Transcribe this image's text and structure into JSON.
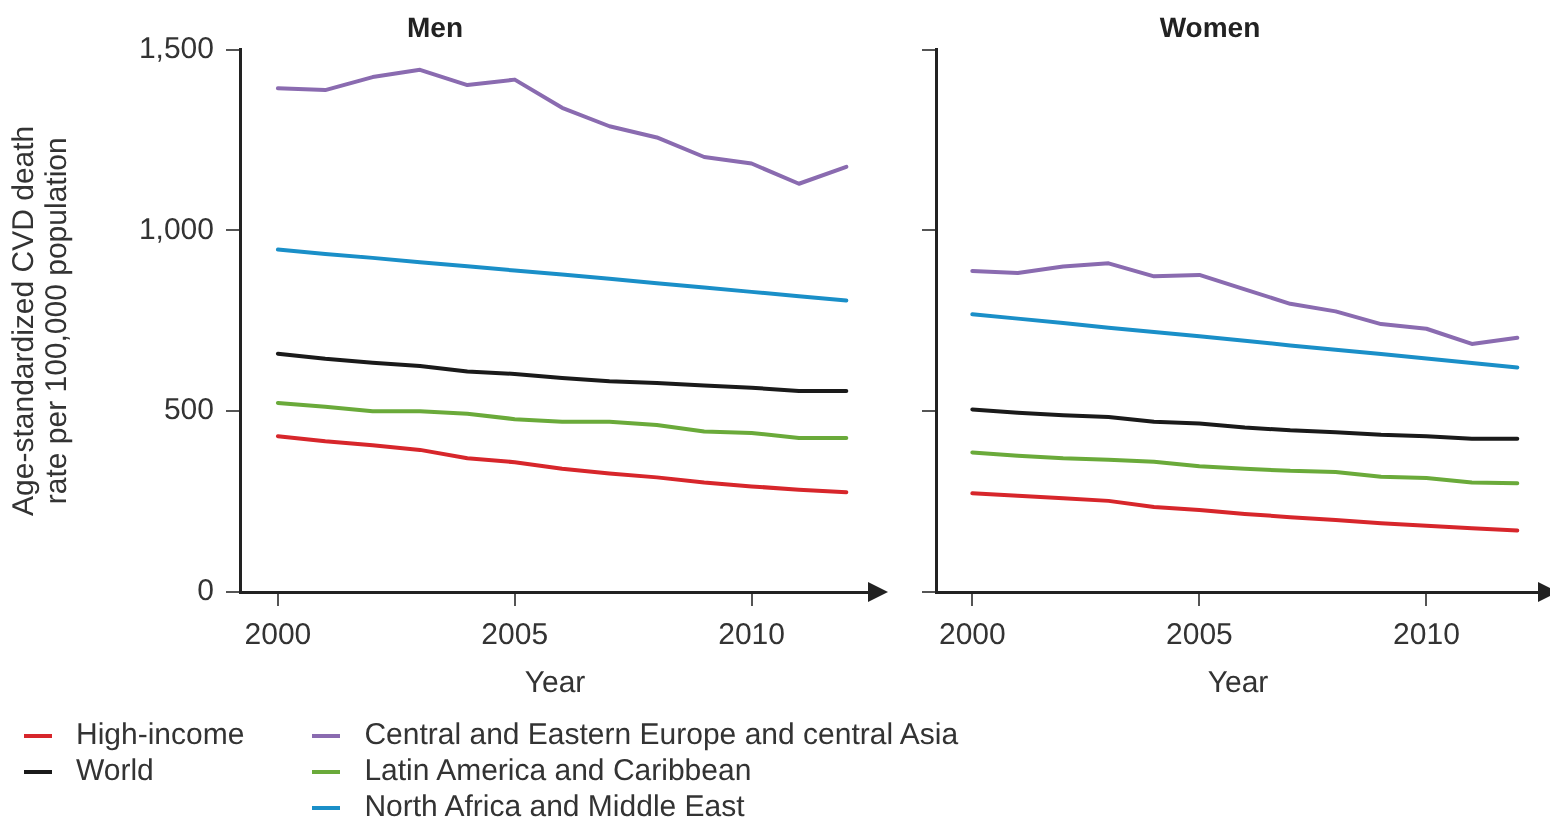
{
  "chart_data": [
    {
      "type": "line",
      "title": "Men",
      "xlabel": "Year",
      "ylabel": "Age-standardized CVD death rate per 100,000 population",
      "x": [
        2000,
        2001,
        2002,
        2003,
        2004,
        2005,
        2006,
        2007,
        2008,
        2009,
        2010,
        2011,
        2012
      ],
      "xlim": [
        1999.2,
        2012.5
      ],
      "xticks": [
        2000,
        2005,
        2010
      ],
      "ylim": [
        0,
        1500
      ],
      "yticks": [
        0,
        500,
        {
          "value": 1000,
          "label": "1,000"
        },
        {
          "value": 1500,
          "label": "1,500"
        }
      ],
      "grid": false,
      "legend": "bottom",
      "marker": "none",
      "line_style": "solid",
      "series": [
        {
          "name": "High-income",
          "color": "#d7262b",
          "values": [
            431,
            417,
            406,
            393,
            370,
            359,
            341,
            328,
            317,
            303,
            292,
            283,
            276
          ]
        },
        {
          "name": "World",
          "color": "#1a1a1a",
          "values": [
            659,
            645,
            634,
            625,
            610,
            603,
            592,
            583,
            578,
            571,
            565,
            556,
            556
          ]
        },
        {
          "name": "Central and Eastern Europe and central Asia",
          "color": "#8a6bb0",
          "values": [
            1393,
            1388,
            1424,
            1444,
            1402,
            1417,
            1339,
            1288,
            1257,
            1203,
            1185,
            1129,
            1176
          ]
        },
        {
          "name": "Latin America and Caribbean",
          "color": "#6aaa3a",
          "values": [
            523,
            512,
            500,
            500,
            493,
            478,
            471,
            471,
            462,
            444,
            440,
            426,
            426
          ]
        },
        {
          "name": "North Africa and Middle East",
          "color": "#1a8fc8",
          "values": [
            947,
            935,
            924,
            912,
            901,
            889,
            878,
            866,
            854,
            842,
            830,
            818,
            806
          ]
        }
      ]
    },
    {
      "type": "line",
      "title": "Women",
      "xlabel": "Year",
      "x": [
        2000,
        2001,
        2002,
        2003,
        2004,
        2005,
        2006,
        2007,
        2008,
        2009,
        2010,
        2011,
        2012
      ],
      "xlim": [
        1999.2,
        2012.5
      ],
      "xticks": [
        2000,
        2005,
        2010
      ],
      "ylim": [
        0,
        1500
      ],
      "yticks": [
        0,
        500,
        1000,
        1500
      ],
      "tick_labels": "x",
      "grid": false,
      "marker": "none",
      "line_style": "solid",
      "series": [
        {
          "color": "#d7262b",
          "values": [
            273,
            266,
            259,
            252,
            235,
            227,
            216,
            207,
            199,
            190,
            183,
            176,
            170
          ]
        },
        {
          "color": "#1a1a1a",
          "values": [
            505,
            496,
            489,
            484,
            471,
            466,
            455,
            447,
            442,
            435,
            431,
            424,
            424
          ]
        },
        {
          "color": "#8a6bb0",
          "values": [
            888,
            882,
            900,
            909,
            873,
            877,
            837,
            797,
            776,
            741,
            728,
            686,
            703
          ]
        },
        {
          "color": "#6aaa3a",
          "values": [
            386,
            377,
            370,
            366,
            360,
            348,
            341,
            335,
            332,
            319,
            315,
            303,
            301
          ]
        },
        {
          "color": "#1a8fc8",
          "values": [
            768,
            756,
            744,
            731,
            719,
            707,
            695,
            682,
            670,
            658,
            646,
            633,
            621
          ]
        }
      ]
    }
  ]
}
